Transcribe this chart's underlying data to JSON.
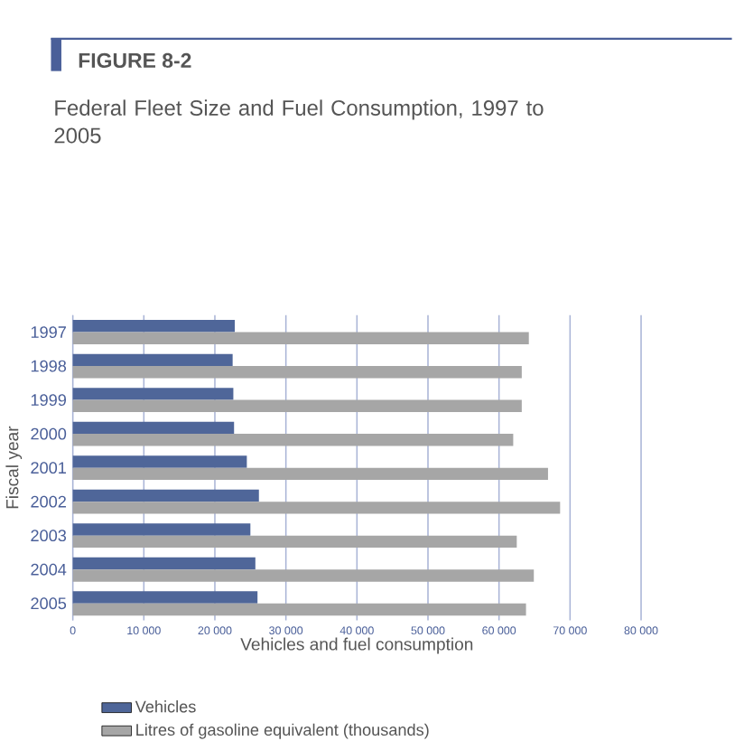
{
  "chart_data": {
    "type": "bar",
    "orientation": "horizontal",
    "title": "FIGURE 8-2",
    "subtitle": "Federal Fleet Size and Fuel Consumption, 1997 to 2005",
    "xlabel": "Vehicles and fuel consumption",
    "ylabel": "Fiscal year",
    "categories": [
      "1997",
      "1998",
      "1999",
      "2000",
      "2001",
      "2002",
      "2003",
      "2004",
      "2005"
    ],
    "series": [
      {
        "name": "Vehicles",
        "color": "#4f6699",
        "values": [
          22800,
          22500,
          22600,
          22700,
          24500,
          26200,
          25000,
          25700,
          26000
        ]
      },
      {
        "name": "Litres of gasoline equivalent (thousands)",
        "color": "#a6a6a6",
        "values": [
          64200,
          63200,
          63200,
          62000,
          66900,
          68600,
          62500,
          64900,
          63800
        ]
      }
    ],
    "xlim": [
      0,
      80000
    ],
    "xticks": [
      0,
      {
        "value": 10000,
        "label": "10 000"
      },
      {
        "value": 20000,
        "label": "20 000"
      },
      {
        "value": 30000,
        "label": "30 000"
      },
      {
        "value": 40000,
        "label": "40 000"
      },
      {
        "value": 50000,
        "label": "50 000"
      },
      {
        "value": 60000,
        "label": "60 000"
      },
      {
        "value": 70000,
        "label": "70 000"
      },
      {
        "value": 80000,
        "label": "80 000"
      }
    ],
    "grid": "x",
    "legend": "bottom"
  }
}
